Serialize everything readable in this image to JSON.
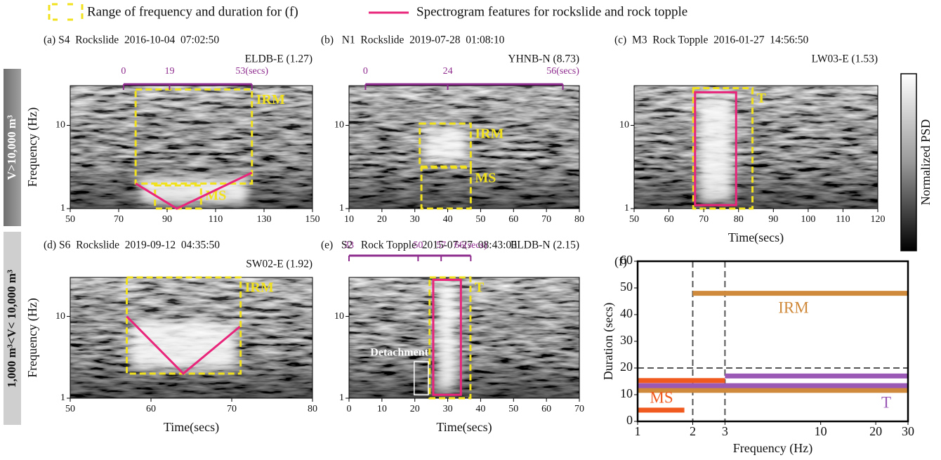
{
  "legend": [
    {
      "label": "Range of frequency and duration for (f)",
      "color": "#f2e21d"
    },
    {
      "label": "Spectrogram features for rockslide and rock topple",
      "color": "#e8257a"
    }
  ],
  "row_labels": [
    "V>10,000 m³",
    "1,000 m³<V< 10,000 m³"
  ],
  "colorbar": {
    "label": "Normalized PSD"
  },
  "chart_data": [
    {
      "type": "spectrogram",
      "title": "(a) S4  Rockslide  2016-10-04  07:02:50",
      "station": "ELDB-E (1.27)",
      "ylabel": "Frequency (Hz)",
      "xlim": [
        50,
        150
      ],
      "xticks": [
        50,
        70,
        90,
        110,
        130,
        150
      ],
      "ylim": [
        1,
        30
      ],
      "yticks": [
        1,
        10
      ],
      "ylog": true,
      "top_axis": {
        "color": "#8e2c8e",
        "ticks": [
          {
            "value": 72,
            "label": "0"
          },
          {
            "value": 91,
            "label": "19"
          },
          {
            "value": 125,
            "label": "53(secs)"
          }
        ]
      },
      "regions": [
        {
          "label": "IRM",
          "x": [
            77,
            125
          ],
          "y": [
            2,
            27
          ],
          "color": "#f2e21d",
          "dashed": true,
          "label_position": "right"
        },
        {
          "label": "MS",
          "x": [
            85,
            104
          ],
          "y": [
            1,
            1.9
          ],
          "color": "#f2e21d",
          "dashed": true,
          "label_position": "right"
        }
      ],
      "features": [
        {
          "x": [
            77,
            94,
            125
          ],
          "y": [
            2,
            1,
            2.7
          ],
          "color": "#e8257a"
        }
      ]
    },
    {
      "type": "spectrogram",
      "title": "(b)   N1  Rockslide  2019-07-28  01:08:10",
      "station": "YHNB-N (8.73)",
      "xlim": [
        10,
        80
      ],
      "xticks": [
        10,
        20,
        30,
        40,
        50,
        60,
        70,
        80
      ],
      "ylim": [
        1,
        30
      ],
      "yticks": [
        1,
        10
      ],
      "ylog": true,
      "top_axis": {
        "color": "#8e2c8e",
        "ticks": [
          {
            "value": 15,
            "label": "0"
          },
          {
            "value": 40,
            "label": "24"
          },
          {
            "value": 75,
            "label": "56(secs)"
          }
        ]
      },
      "regions": [
        {
          "label": "IRM",
          "x": [
            31.5,
            47
          ],
          "y": [
            3.2,
            10.5
          ],
          "color": "#f2e21d",
          "dashed": true,
          "label_position": "right"
        },
        {
          "label": "MS",
          "x": [
            32,
            47
          ],
          "y": [
            1,
            3.1
          ],
          "color": "#f2e21d",
          "dashed": true,
          "label_position": "right"
        }
      ]
    },
    {
      "type": "spectrogram",
      "title": "(c)  M3  Rock Topple  2016-01-27  14:56:50",
      "station": "LW03-E (1.53)",
      "xlabel": "Time(secs)",
      "xlim": [
        50,
        120
      ],
      "xticks": [
        50,
        60,
        70,
        80,
        90,
        100,
        110,
        120
      ],
      "ylim": [
        1,
        30
      ],
      "yticks": [
        1,
        10
      ],
      "ylog": true,
      "regions": [
        {
          "label": "T",
          "x": [
            67,
            84
          ],
          "y": [
            1,
            28
          ],
          "color": "#f2e21d",
          "dashed": true,
          "label_position": "right"
        }
      ],
      "features": [
        {
          "x": [
            67.5,
            79.3
          ],
          "y": [
            1.1,
            25
          ],
          "color": "#e8257a"
        }
      ]
    },
    {
      "type": "spectrogram",
      "title": "(d) S6  Rockslide  2019-09-12  04:35:50",
      "station": "SW02-E (1.92)",
      "ylabel": "Frequency (Hz)",
      "xlabel": "Time(secs)",
      "xlim": [
        50,
        80
      ],
      "xticks": [
        50,
        60,
        70,
        80
      ],
      "ylim": [
        1,
        30
      ],
      "yticks": [
        1,
        10
      ],
      "ylog": true,
      "regions": [
        {
          "label": "IRM",
          "x": [
            57,
            71.1
          ],
          "y": [
            2,
            30
          ],
          "color": "#f2e21d",
          "dashed": true,
          "label_position": "right"
        }
      ],
      "features": [
        {
          "x": [
            57,
            64,
            71
          ],
          "y": [
            10,
            2,
            7.5
          ],
          "color": "#e8257a"
        }
      ]
    },
    {
      "type": "spectrogram",
      "title": "(e)   S2   Rock Topple  2015-07-27  08:43:00",
      "station": "ELDB-N (2.15)",
      "xlabel": "Time(secs)",
      "xlim": [
        0,
        70
      ],
      "xticks": [
        0,
        10,
        20,
        30,
        40,
        50,
        60,
        70
      ],
      "ylim": [
        1,
        30
      ],
      "yticks": [
        1,
        10
      ],
      "ylog": true,
      "top_axis": {
        "color": "#8e2c8e",
        "ticks": [
          {
            "value": 0,
            "label": "33"
          },
          {
            "value": 21,
            "label": "50"
          },
          {
            "value": 28,
            "label": "57"
          },
          {
            "value": 37,
            "label": "66(secs)"
          }
        ]
      },
      "regions": [
        {
          "label": "T",
          "x": [
            24.5,
            36.9
          ],
          "y": [
            1,
            30
          ],
          "color": "#f2e21d",
          "dashed": true,
          "label_position": "right"
        },
        {
          "label": "Detachment",
          "x": [
            19.8,
            24.1
          ],
          "y": [
            1.1,
            2.8
          ],
          "color": "#ffffff",
          "dashed": false,
          "label_position": "above"
        }
      ],
      "features": [
        {
          "x": [
            25.6,
            34
          ],
          "y": [
            1.1,
            28
          ],
          "color": "#e8257a"
        }
      ]
    },
    {
      "type": "segments",
      "title": "(f)",
      "xlabel": "Frequency (Hz)",
      "ylabel": "Duration (secs)",
      "xlim": [
        1,
        30
      ],
      "xticks": [
        1,
        2,
        3,
        10,
        20,
        30
      ],
      "xlog": true,
      "ylim": [
        0,
        60
      ],
      "yticks": [
        0,
        10,
        20,
        30,
        40,
        50,
        60
      ],
      "ref_x": [
        2,
        3
      ],
      "ref_y": [
        20
      ],
      "series": [
        {
          "name": "IRM",
          "color": "#d08a3c",
          "x": [
            [
              2,
              30
            ],
            [
              1,
              30
            ]
          ],
          "values": [
            48,
            11.6
          ]
        },
        {
          "name": "MS",
          "color": "#f05a1e",
          "x": [
            [
              1,
              3
            ],
            [
              1,
              1.8
            ]
          ],
          "values": [
            15.3,
            4.2
          ]
        },
        {
          "name": "T",
          "color": "#9b59b6",
          "x": [
            [
              3,
              30
            ],
            [
              1,
              30
            ]
          ],
          "values": [
            17,
            13.4
          ]
        }
      ]
    }
  ]
}
